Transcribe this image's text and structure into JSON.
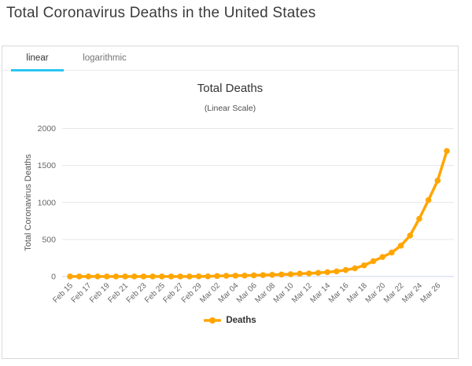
{
  "header": {
    "title": "Total Coronavirus Deaths in the United States"
  },
  "tabs": [
    {
      "label": "linear",
      "active": true
    },
    {
      "label": "logarithmic",
      "active": false
    }
  ],
  "colors": {
    "series": "#FFA500",
    "active_tab_underline": "#29C6F3",
    "panel_border": "#D9D9D9",
    "gridline": "#E6E6E6",
    "axis_line": "#CCD6EB",
    "tick_label": "#666666"
  },
  "chart_data": {
    "type": "line",
    "title": "Total Deaths",
    "subtitle": "(Linear Scale)",
    "xlabel": "",
    "ylabel": "Total Coronavirus Deaths",
    "ylim": [
      0,
      2000
    ],
    "yticks": [
      0,
      500,
      1000,
      1500,
      2000
    ],
    "grid": true,
    "legend_position": "bottom",
    "xtick_every": 2,
    "x": [
      "Feb 15",
      "Feb 16",
      "Feb 17",
      "Feb 18",
      "Feb 19",
      "Feb 20",
      "Feb 21",
      "Feb 22",
      "Feb 23",
      "Feb 24",
      "Feb 25",
      "Feb 26",
      "Feb 27",
      "Feb 28",
      "Feb 29",
      "Mar 01",
      "Mar 02",
      "Mar 03",
      "Mar 04",
      "Mar 05",
      "Mar 06",
      "Mar 07",
      "Mar 08",
      "Mar 09",
      "Mar 10",
      "Mar 11",
      "Mar 12",
      "Mar 13",
      "Mar 14",
      "Mar 15",
      "Mar 16",
      "Mar 17",
      "Mar 18",
      "Mar 19",
      "Mar 20",
      "Mar 21",
      "Mar 22",
      "Mar 23",
      "Mar 24",
      "Mar 25",
      "Mar 26",
      "Mar 27"
    ],
    "series": [
      {
        "name": "Deaths",
        "color": "#FFA500",
        "values": [
          0,
          0,
          0,
          0,
          0,
          0,
          0,
          0,
          0,
          0,
          0,
          0,
          0,
          0,
          1,
          1,
          6,
          9,
          11,
          12,
          15,
          19,
          22,
          26,
          30,
          38,
          41,
          49,
          58,
          69,
          87,
          110,
          150,
          207,
          263,
          323,
          416,
          553,
          780,
          1032,
          1295,
          1695
        ]
      }
    ]
  }
}
